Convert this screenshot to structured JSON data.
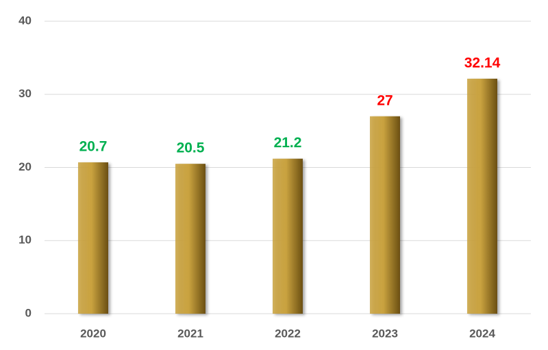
{
  "chart_data": {
    "type": "bar",
    "categories": [
      "2020",
      "2021",
      "2022",
      "2023",
      "2024"
    ],
    "values": [
      20.7,
      20.5,
      21.2,
      27,
      32.14
    ],
    "color": "#c9a23f",
    "value_label_colors": [
      "#00b050",
      "#00b050",
      "#00b050",
      "#ff0000",
      "#ff0000"
    ],
    "ylim": [
      0,
      40
    ],
    "yticks": [
      0,
      10,
      20,
      30,
      40
    ],
    "grid": true
  }
}
